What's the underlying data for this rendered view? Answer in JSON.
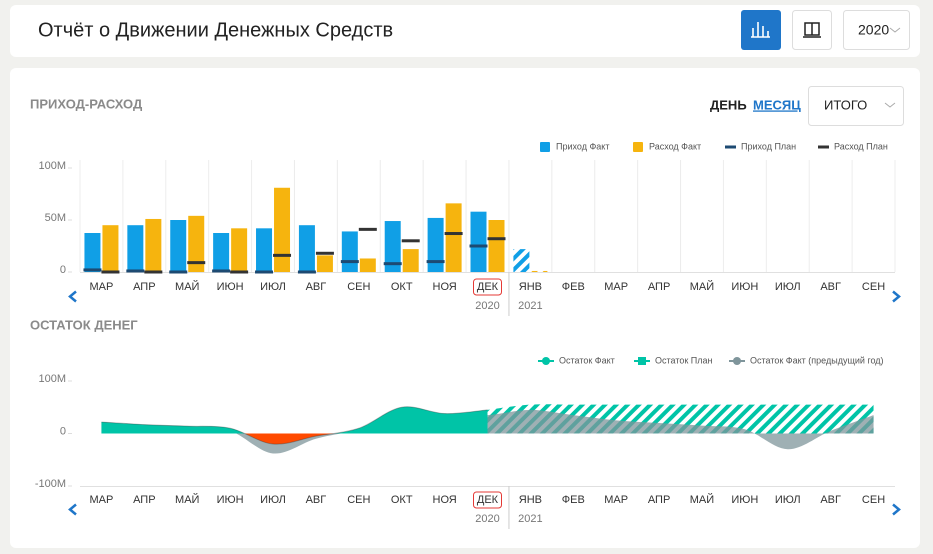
{
  "header": {
    "title": "Отчёт о Движении Денежных Средств",
    "year": "2020"
  },
  "panel": {
    "view_options": [
      "ДЕНЬ",
      "МЕСЯЦ"
    ],
    "active_view": 1,
    "total_select": "ИТОГО"
  },
  "chart_data": [
    {
      "type": "bar",
      "title": "ПРИХОД-РАСХОД",
      "categories": [
        "МАР",
        "АПР",
        "МАЙ",
        "ИЮН",
        "ИЮЛ",
        "АВГ",
        "СЕН",
        "ОКТ",
        "НОЯ",
        "ДЕК",
        "ЯНВ",
        "ФЕВ",
        "МАР",
        "АПР",
        "МАЙ",
        "ИЮН",
        "ИЮЛ",
        "АВГ",
        "СЕН"
      ],
      "year_labels": [
        "2020",
        "2021"
      ],
      "highlight_index": 9,
      "ylim": [
        0,
        100
      ],
      "yticks": [
        0,
        {
          "value": 50,
          "label": "50M"
        },
        {
          "value": 100,
          "label": "100M"
        }
      ],
      "series": [
        {
          "name": "Приход Факт",
          "color": "#109fe6",
          "style": "bar",
          "values": [
            37.5,
            45,
            50,
            37.5,
            42,
            45,
            39,
            49,
            52,
            58,
            22,
            null,
            null,
            null,
            null,
            null,
            null,
            null,
            null
          ]
        },
        {
          "name": "Расход Факт",
          "color": "#f6b40e",
          "style": "bar",
          "values": [
            45,
            51,
            54,
            42,
            81,
            16,
            13,
            22,
            66,
            50,
            1,
            null,
            null,
            null,
            null,
            null,
            null,
            null,
            null
          ]
        },
        {
          "name": "Приход План",
          "color": "#1d4a72",
          "style": "marker",
          "values": [
            2,
            1,
            0,
            1,
            0,
            0,
            10,
            8,
            10,
            25,
            null,
            null,
            null,
            null,
            null,
            null,
            null,
            null,
            null
          ]
        },
        {
          "name": "Расход План",
          "color": "#333333",
          "style": "marker",
          "values": [
            0,
            0,
            9,
            0,
            16,
            18,
            41,
            30,
            37,
            32,
            null,
            null,
            null,
            null,
            null,
            null,
            null,
            null,
            null
          ]
        }
      ]
    },
    {
      "type": "area",
      "title": "ОСТАТОК ДЕНЕГ",
      "categories": [
        "МАР",
        "АПР",
        "МАЙ",
        "ИЮН",
        "ИЮЛ",
        "АВГ",
        "СЕН",
        "ОКТ",
        "НОЯ",
        "ДЕК",
        "ЯНВ",
        "ФЕВ",
        "МАР",
        "АПР",
        "МАЙ",
        "ИЮН",
        "ИЮЛ",
        "АВГ",
        "СЕН"
      ],
      "year_labels": [
        "2020",
        "2021"
      ],
      "highlight_index": 9,
      "ylim": [
        -100,
        100
      ],
      "yticks": [
        {
          "value": -100,
          "label": "-100M"
        },
        0,
        {
          "value": 100,
          "label": "100M"
        }
      ],
      "series": [
        {
          "name": "Остаток План",
          "color": "#00c4a7",
          "style": "hatch",
          "values": [
            null,
            null,
            null,
            null,
            null,
            null,
            null,
            null,
            null,
            45,
            55,
            55,
            55,
            55,
            55,
            55,
            55,
            55,
            55
          ]
        },
        {
          "name": "Остаток Факт (предыдущий год)",
          "color": "#7f959b",
          "style": "fill",
          "values": [
            22,
            17,
            14,
            5,
            -38,
            -10,
            8,
            40,
            35,
            35,
            45,
            35,
            25,
            20,
            15,
            8,
            -30,
            5,
            35
          ]
        },
        {
          "name": "Остаток Факт",
          "color": "#00c4a7",
          "negative_color": "#ff4a00",
          "style": "fill",
          "values": [
            22,
            17,
            14,
            10,
            -20,
            -5,
            10,
            50,
            38,
            45,
            null,
            null,
            null,
            null,
            null,
            null,
            null,
            null,
            null
          ]
        }
      ],
      "legend_order": [
        2,
        0,
        1
      ]
    }
  ]
}
